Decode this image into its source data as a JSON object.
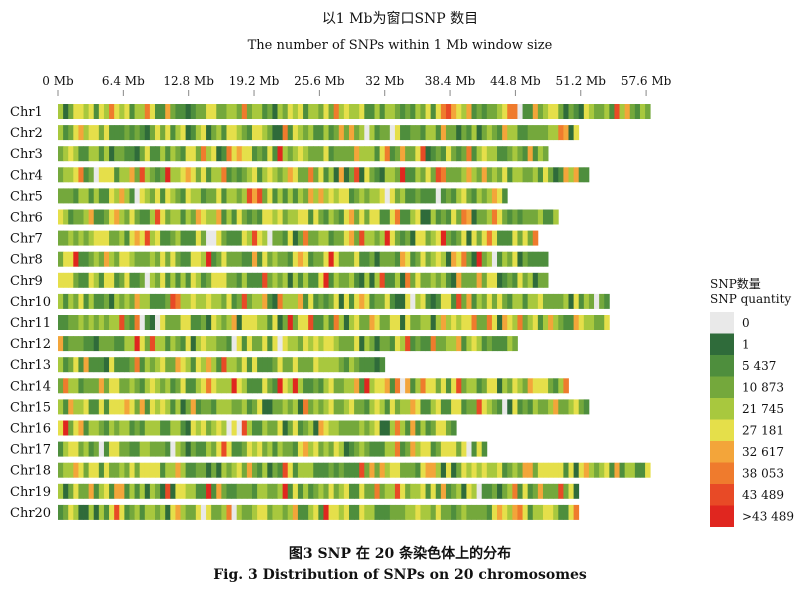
{
  "chart_data": {
    "type": "heatmap",
    "title_zh": "以1  Mb为窗口SNP 数目",
    "title_en": "The number of  SNPs within 1 Mb window size",
    "x_ticks": [
      "0 Mb",
      "6.4 Mb",
      "12.8 Mb",
      "19.2 Mb",
      "25.6 Mb",
      "32 Mb",
      "38.4 Mb",
      "44.8 Mb",
      "51.2 Mb",
      "57.6 Mb"
    ],
    "x_tick_values": [
      0,
      6.4,
      12.8,
      19.2,
      25.6,
      32,
      38.4,
      44.8,
      51.2,
      57.6
    ],
    "x_unit": "Mb",
    "chromosomes": [
      {
        "name": "Chr1",
        "length_mb": 58
      },
      {
        "name": "Chr2",
        "length_mb": 51
      },
      {
        "name": "Chr3",
        "length_mb": 48
      },
      {
        "name": "Chr4",
        "length_mb": 52
      },
      {
        "name": "Chr5",
        "length_mb": 44
      },
      {
        "name": "Chr6",
        "length_mb": 49
      },
      {
        "name": "Chr7",
        "length_mb": 47
      },
      {
        "name": "Chr8",
        "length_mb": 48
      },
      {
        "name": "Chr9",
        "length_mb": 48
      },
      {
        "name": "Chr10",
        "length_mb": 54
      },
      {
        "name": "Chr11",
        "length_mb": 54
      },
      {
        "name": "Chr12",
        "length_mb": 45
      },
      {
        "name": "Chr13",
        "length_mb": 32
      },
      {
        "name": "Chr14",
        "length_mb": 50
      },
      {
        "name": "Chr15",
        "length_mb": 52
      },
      {
        "name": "Chr16",
        "length_mb": 39
      },
      {
        "name": "Chr17",
        "length_mb": 42
      },
      {
        "name": "Chr18",
        "length_mb": 58
      },
      {
        "name": "Chr19",
        "length_mb": 51
      },
      {
        "name": "Chr20",
        "length_mb": 51
      }
    ],
    "legend": {
      "title_zh": "SNP数量",
      "title_en": "SNP quantity",
      "items": [
        {
          "label": "0",
          "color": "#e9e9e9"
        },
        {
          "label": "1",
          "color": "#2f6b3a"
        },
        {
          "label": "5 437",
          "color": "#4e8e3d"
        },
        {
          "label": "10 873",
          "color": "#74a83c"
        },
        {
          "label": "21 745",
          "color": "#a8c83e"
        },
        {
          "label": "27 181",
          "color": "#e5df4a"
        },
        {
          "label": "32 617",
          "color": "#f3a53a"
        },
        {
          "label": "38 053",
          "color": "#ef7b2d"
        },
        {
          "label": "43 489",
          "color": "#e84a26"
        },
        {
          "label": ">43 489",
          "color": "#e0261f"
        }
      ]
    }
  },
  "caption": {
    "zh": "图3    SNP 在 20 条染色体上的分布",
    "en": "Fig. 3    Distribution of SNPs on 20 chromosomes"
  }
}
